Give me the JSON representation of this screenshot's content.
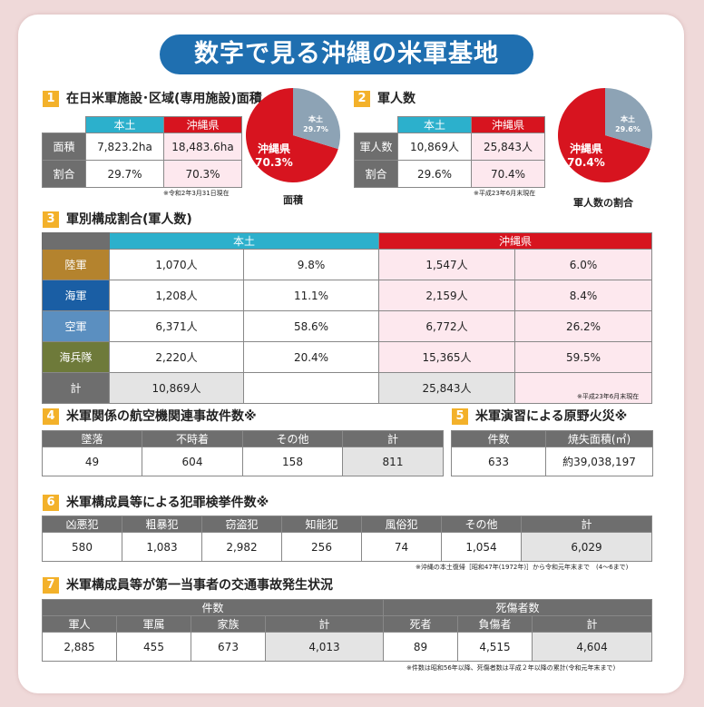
{
  "title": "数字で見る沖縄の米軍基地",
  "sec1": {
    "num": "1",
    "title": "在日米軍施設･区域(専用施設)面積",
    "col_mainland": "本土",
    "col_okinawa": "沖縄県",
    "rows": [
      {
        "label": "面積",
        "mainland": "7,823.2ha",
        "okinawa": "18,483.6ha"
      },
      {
        "label": "割合",
        "mainland": "29.7%",
        "okinawa": "70.3%"
      }
    ],
    "note": "※令和2年3月31日現在",
    "pie": {
      "okinawa_label": "沖縄県",
      "okinawa_pct": "70.3%",
      "okinawa_value": 70.3,
      "mainland_label": "本土",
      "mainland_pct": "29.7%",
      "mainland_value": 29.7,
      "caption": "面積"
    }
  },
  "sec2": {
    "num": "2",
    "title": "軍人数",
    "col_mainland": "本土",
    "col_okinawa": "沖縄県",
    "rows": [
      {
        "label": "軍人数",
        "mainland": "10,869人",
        "okinawa": "25,843人"
      },
      {
        "label": "割合",
        "mainland": "29.6%",
        "okinawa": "70.4%"
      }
    ],
    "note": "※平成23年6月末現在",
    "pie": {
      "okinawa_label": "沖縄県",
      "okinawa_pct": "70.4%",
      "okinawa_value": 70.4,
      "mainland_label": "本土",
      "mainland_pct": "29.6%",
      "mainland_value": 29.6,
      "caption": "軍人数の割合"
    }
  },
  "sec3": {
    "num": "3",
    "title": "軍別構成割合(軍人数)",
    "col_mainland": "本土",
    "col_okinawa": "沖縄県",
    "rows": [
      {
        "label": "陸軍",
        "m_count": "1,070人",
        "m_pct": "9.8%",
        "o_count": "1,547人",
        "o_pct": "6.0%"
      },
      {
        "label": "海軍",
        "m_count": "1,208人",
        "m_pct": "11.1%",
        "o_count": "2,159人",
        "o_pct": "8.4%"
      },
      {
        "label": "空軍",
        "m_count": "6,371人",
        "m_pct": "58.6%",
        "o_count": "6,772人",
        "o_pct": "26.2%"
      },
      {
        "label": "海兵隊",
        "m_count": "2,220人",
        "m_pct": "20.4%",
        "o_count": "15,365人",
        "o_pct": "59.5%"
      },
      {
        "label": "計",
        "m_count": "10,869人",
        "m_pct": "",
        "o_count": "25,843人",
        "o_pct": ""
      }
    ],
    "note": "※平成23年6月末現在"
  },
  "sec4": {
    "num": "4",
    "title": "米軍関係の航空機関連事故件数※",
    "headers": [
      "墜落",
      "不時着",
      "その他",
      "計"
    ],
    "values": [
      "49",
      "604",
      "158",
      "811"
    ]
  },
  "sec5": {
    "num": "5",
    "title": "米軍演習による原野火災※",
    "headers": [
      "件数",
      "焼失面積(㎡)"
    ],
    "values": [
      "633",
      "約39,038,197"
    ]
  },
  "sec6": {
    "num": "6",
    "title": "米軍構成員等による犯罪検挙件数※",
    "headers": [
      "凶悪犯",
      "粗暴犯",
      "窃盗犯",
      "知能犯",
      "風俗犯",
      "その他",
      "計"
    ],
    "values": [
      "580",
      "1,083",
      "2,982",
      "256",
      "74",
      "1,054",
      "6,029"
    ],
    "note": "※沖縄の本土復帰［昭和47年(1972年)］から令和元年末まで　(4〜6まで)"
  },
  "sec7": {
    "num": "7",
    "title": "米軍構成員等が第一当事者の交通事故発生状況",
    "group1": "件数",
    "group2": "死傷者数",
    "headers": [
      "軍人",
      "軍属",
      "家族",
      "計",
      "死者",
      "負傷者",
      "計"
    ],
    "values": [
      "2,885",
      "455",
      "673",
      "4,013",
      "89",
      "4,515",
      "4,604"
    ],
    "note": "※件数は昭和56年以降、死傷者数は平成２年以降の累計(令和元年末まで)"
  },
  "colors": {
    "banner": "#1f6fb0",
    "okinawa_red": "#d7141f",
    "mainland_cyan": "#2cb0cc",
    "pie_gray": "#8da3b5",
    "num_badge": "#f3b12a"
  }
}
